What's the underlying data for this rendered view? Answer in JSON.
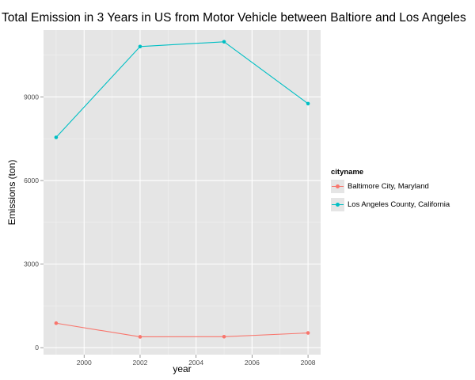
{
  "chart_data": {
    "type": "line",
    "title": "Total Emission in 3 Years in US from Motor Vehicle between Baltiore and Los Angeles",
    "xlabel": "year",
    "ylabel": "Emissions (ton)",
    "x": [
      1999,
      2002,
      2005,
      2008
    ],
    "xticks": [
      2000,
      2002,
      2004,
      2006,
      2008
    ],
    "yticks": [
      0,
      3000,
      6000,
      9000
    ],
    "xlim": [
      1998.55,
      2008.45
    ],
    "ylim": [
      -250,
      11400
    ],
    "grid": true,
    "legend_position": "right",
    "legend_title": "cityname",
    "series": [
      {
        "name": "Baltimore City, Maryland",
        "color": "#f8766d",
        "values": [
          880,
          390,
          395,
          530
        ]
      },
      {
        "name": "Los Angeles County, California",
        "color": "#00bfc4",
        "values": [
          7550,
          10810,
          10980,
          8760
        ]
      }
    ],
    "colors": {
      "panel": "#e5e5e5",
      "grid_major": "#ffffff",
      "grid_minor": "#f2f2f2",
      "axis_text": "#4d4d4d"
    }
  }
}
